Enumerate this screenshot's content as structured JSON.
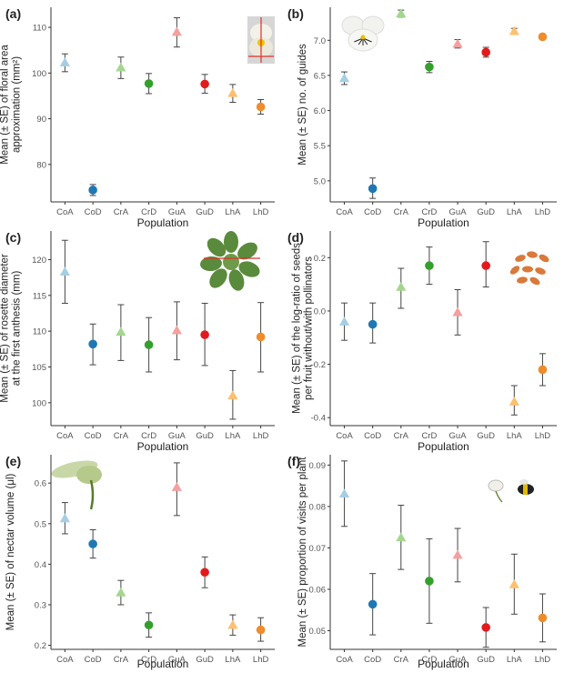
{
  "chart_data": [
    {
      "type": "scatter",
      "panel_label": "(a)",
      "xlabel": "Population",
      "ylabel": [
        "Mean (± SE) of floral area",
        "approximation (mm²)"
      ],
      "categories": [
        "CoA",
        "CoD",
        "CrA",
        "CrD",
        "GuA",
        "GuD",
        "LhA",
        "LhD"
      ],
      "yticks": [
        80,
        90,
        100,
        110
      ],
      "ylim": [
        71.8,
        114.4
      ],
      "points": [
        {
          "mean": 102.3,
          "lo": 100.3,
          "hi": 104.2
        },
        {
          "mean": 74.4,
          "lo": 73.2,
          "hi": 75.6
        },
        {
          "mean": 101.2,
          "lo": 98.8,
          "hi": 103.5
        },
        {
          "mean": 97.7,
          "lo": 95.5,
          "hi": 99.9
        },
        {
          "mean": 109.0,
          "lo": 105.7,
          "hi": 112.1
        },
        {
          "mean": 97.6,
          "lo": 95.6,
          "hi": 99.7
        },
        {
          "mean": 95.6,
          "lo": 93.6,
          "hi": 97.5
        },
        {
          "mean": 92.6,
          "lo": 91.0,
          "hi": 94.2
        }
      ]
    },
    {
      "type": "scatter",
      "panel_label": "(b)",
      "xlabel": "Population",
      "ylabel": [
        "Mean (± SE) no. of guides"
      ],
      "categories": [
        "CoA",
        "CoD",
        "CrA",
        "CrD",
        "GuA",
        "GuD",
        "LhA",
        "LhD"
      ],
      "yticks": [
        5.0,
        5.5,
        6.0,
        6.5,
        7.0
      ],
      "ytick_labels": [
        "5.0",
        "5.5",
        "6.0",
        "6.5",
        "7.0"
      ],
      "ylim": [
        4.7,
        7.47
      ],
      "points": [
        {
          "mean": 6.46,
          "lo": 6.37,
          "hi": 6.55
        },
        {
          "mean": 4.89,
          "lo": 4.75,
          "hi": 5.04
        },
        {
          "mean": 7.38,
          "lo": 7.33,
          "hi": 7.43
        },
        {
          "mean": 6.62,
          "lo": 6.54,
          "hi": 6.7
        },
        {
          "mean": 6.95,
          "lo": 6.89,
          "hi": 7.01
        },
        {
          "mean": 6.83,
          "lo": 6.76,
          "hi": 6.9
        },
        {
          "mean": 7.13,
          "lo": 7.09,
          "hi": 7.17
        },
        {
          "mean": 7.05,
          "lo": 7.03,
          "hi": 7.07
        }
      ]
    },
    {
      "type": "scatter",
      "panel_label": "(c)",
      "xlabel": "Population",
      "ylabel": [
        "Mean (± SE) of rosette diameter",
        "at the first anthesis (mm)"
      ],
      "categories": [
        "CoA",
        "CoD",
        "CrA",
        "CrD",
        "GuA",
        "GuD",
        "LhA",
        "LhD"
      ],
      "yticks": [
        100,
        105,
        110,
        115,
        120
      ],
      "ylim": [
        96.8,
        124.0
      ],
      "points": [
        {
          "mean": 118.3,
          "lo": 113.9,
          "hi": 122.7
        },
        {
          "mean": 108.2,
          "lo": 105.3,
          "hi": 111.0
        },
        {
          "mean": 109.9,
          "lo": 105.9,
          "hi": 113.7
        },
        {
          "mean": 108.1,
          "lo": 104.3,
          "hi": 111.9
        },
        {
          "mean": 110.1,
          "lo": 106.0,
          "hi": 114.1
        },
        {
          "mean": 109.5,
          "lo": 105.2,
          "hi": 113.9
        },
        {
          "mean": 101.0,
          "lo": 97.7,
          "hi": 104.5
        },
        {
          "mean": 109.2,
          "lo": 104.3,
          "hi": 114.0
        }
      ]
    },
    {
      "type": "scatter",
      "panel_label": "(d)",
      "xlabel": "Population",
      "ylabel": [
        "Mean (± SE) of the log-ratio of seeds",
        "per fruit without/with pollinators"
      ],
      "categories": [
        "CoA",
        "CoD",
        "CrA",
        "CrD",
        "GuA",
        "GuD",
        "LhA",
        "LhD"
      ],
      "yticks": [
        -0.4,
        -0.2,
        0.0,
        0.2
      ],
      "ytick_labels": [
        "-0.4",
        "-0.2",
        "0.0",
        "0.2"
      ],
      "ylim": [
        -0.43,
        0.3
      ],
      "points": [
        {
          "mean": -0.04,
          "lo": -0.11,
          "hi": 0.03
        },
        {
          "mean": -0.05,
          "lo": -0.12,
          "hi": 0.03
        },
        {
          "mean": 0.09,
          "lo": 0.01,
          "hi": 0.16
        },
        {
          "mean": 0.17,
          "lo": 0.1,
          "hi": 0.24
        },
        {
          "mean": -0.005,
          "lo": -0.09,
          "hi": 0.08
        },
        {
          "mean": 0.17,
          "lo": 0.09,
          "hi": 0.26
        },
        {
          "mean": -0.34,
          "lo": -0.39,
          "hi": -0.28
        },
        {
          "mean": -0.22,
          "lo": -0.28,
          "hi": -0.16
        }
      ]
    },
    {
      "type": "scatter",
      "panel_label": "(e)",
      "xlabel": "Population",
      "ylabel": [
        "Mean (± SE) of nectar volume (μl)"
      ],
      "categories": [
        "CoA",
        "CoD",
        "CrA",
        "CrD",
        "GuA",
        "GuD",
        "LhA",
        "LhD"
      ],
      "yticks": [
        0.2,
        0.3,
        0.4,
        0.5,
        0.6
      ],
      "ytick_labels": [
        "0.2",
        "0.3",
        "0.4",
        "0.5",
        "0.6"
      ],
      "ylim": [
        0.19,
        0.67
      ],
      "points": [
        {
          "mean": 0.513,
          "lo": 0.475,
          "hi": 0.552
        },
        {
          "mean": 0.45,
          "lo": 0.415,
          "hi": 0.485
        },
        {
          "mean": 0.33,
          "lo": 0.3,
          "hi": 0.36
        },
        {
          "mean": 0.25,
          "lo": 0.22,
          "hi": 0.28
        },
        {
          "mean": 0.59,
          "lo": 0.52,
          "hi": 0.65
        },
        {
          "mean": 0.38,
          "lo": 0.342,
          "hi": 0.418
        },
        {
          "mean": 0.25,
          "lo": 0.225,
          "hi": 0.275
        },
        {
          "mean": 0.238,
          "lo": 0.21,
          "hi": 0.268
        }
      ]
    },
    {
      "type": "scatter",
      "panel_label": "(f)",
      "xlabel": "Population",
      "ylabel": [
        "Mean (± SE) proportion of visits per plant"
      ],
      "categories": [
        "CoA",
        "CoD",
        "CrA",
        "CrD",
        "GuA",
        "GuD",
        "LhA",
        "LhD"
      ],
      "yticks": [
        0.05,
        0.06,
        0.07,
        0.08,
        0.09
      ],
      "ytick_labels": [
        "0.05",
        "0.06",
        "0.07",
        "0.08",
        "0.09"
      ],
      "ylim": [
        0.0455,
        0.0925
      ],
      "points": [
        {
          "mean": 0.0831,
          "lo": 0.0752,
          "hi": 0.091
        },
        {
          "mean": 0.0564,
          "lo": 0.049,
          "hi": 0.0638
        },
        {
          "mean": 0.0725,
          "lo": 0.0648,
          "hi": 0.0803
        },
        {
          "mean": 0.062,
          "lo": 0.0518,
          "hi": 0.0722
        },
        {
          "mean": 0.0683,
          "lo": 0.0618,
          "hi": 0.0747
        },
        {
          "mean": 0.0508,
          "lo": 0.046,
          "hi": 0.0556
        },
        {
          "mean": 0.0612,
          "lo": 0.054,
          "hi": 0.0685
        },
        {
          "mean": 0.0531,
          "lo": 0.0473,
          "hi": 0.0589
        }
      ]
    }
  ],
  "colors": {
    "CoA": "#a6cee3",
    "CoD": "#1f78b4",
    "CrA": "#a5d68f",
    "CrD": "#33a02c",
    "GuA": "#f4a0a0",
    "GuD": "#e31a1c",
    "LhA": "#fdc070",
    "LhD": "#f08c2a",
    "axis": "#333333",
    "errorbar": "#444444",
    "text": "#222222"
  },
  "marker_shapes": {
    "A": "triangle",
    "D": "circle"
  }
}
